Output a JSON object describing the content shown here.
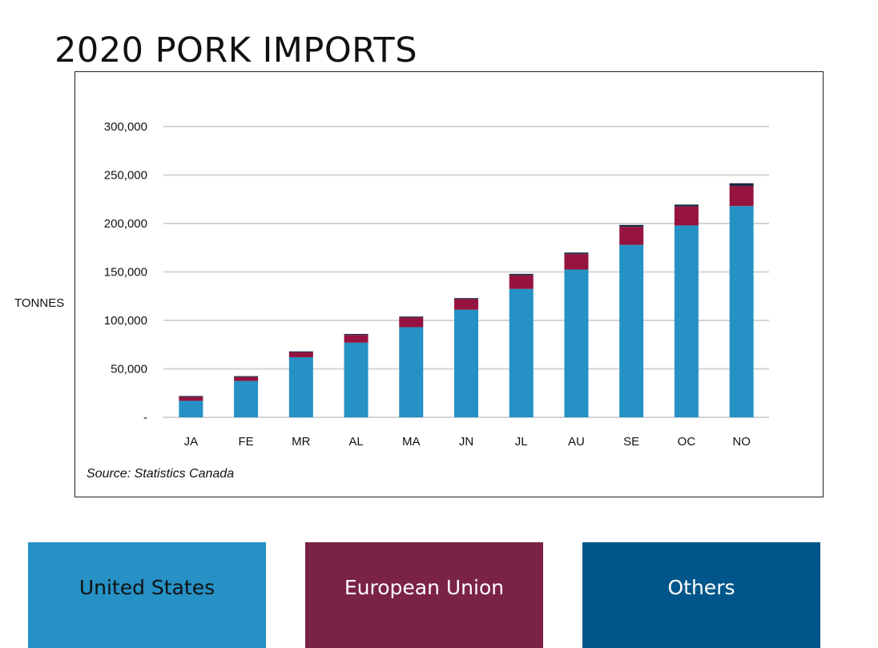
{
  "title": "2020 PORK IMPORTS",
  "y_unit_label": "TONNES",
  "source": "Source: Statistics Canada",
  "legend": [
    {
      "label": "United States",
      "color": "#2591c5",
      "text_color": "#111111"
    },
    {
      "label": "European Union",
      "color": "#7a2346",
      "text_color": "#ffffff"
    },
    {
      "label": "Others",
      "color": "#00568a",
      "text_color": "#ffffff"
    }
  ],
  "chart_data": {
    "type": "bar",
    "stacked": true,
    "categories": [
      "JA",
      "FE",
      "MR",
      "AL",
      "MA",
      "JN",
      "JL",
      "AU",
      "SE",
      "OC",
      "NO"
    ],
    "series": [
      {
        "name": "United States",
        "color": "#2591c5",
        "values": [
          17000,
          37500,
          62000,
          77000,
          93000,
          111000,
          132500,
          152500,
          178000,
          198000,
          218000
        ]
      },
      {
        "name": "European Union",
        "color": "#96133f",
        "values": [
          4000,
          4000,
          5000,
          8000,
          10000,
          11000,
          14000,
          16000,
          18500,
          19500,
          20500
        ]
      },
      {
        "name": "Others",
        "color": "#1c2841",
        "values": [
          1000,
          1000,
          1000,
          1000,
          1000,
          1000,
          1500,
          1500,
          2000,
          2000,
          3000
        ]
      }
    ],
    "yticks": [
      0,
      50000,
      100000,
      150000,
      200000,
      250000,
      300000
    ],
    "ytick_labels": [
      "-",
      "50,000",
      "100,000",
      "150,000",
      "200,000",
      "250,000",
      "300,000"
    ],
    "ylim": [
      0,
      300000
    ],
    "ylabel": "TONNES",
    "grid": true
  }
}
